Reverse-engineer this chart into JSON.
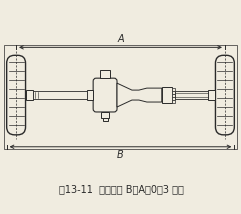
{
  "caption": "图13-11  前轮前束 B－A＝0～3 毫米",
  "bg_color": "#f0ece0",
  "lc": "#2a2a2a",
  "fig_width": 2.41,
  "fig_height": 2.14,
  "dpi": 100,
  "caption_fontsize": 7.0
}
